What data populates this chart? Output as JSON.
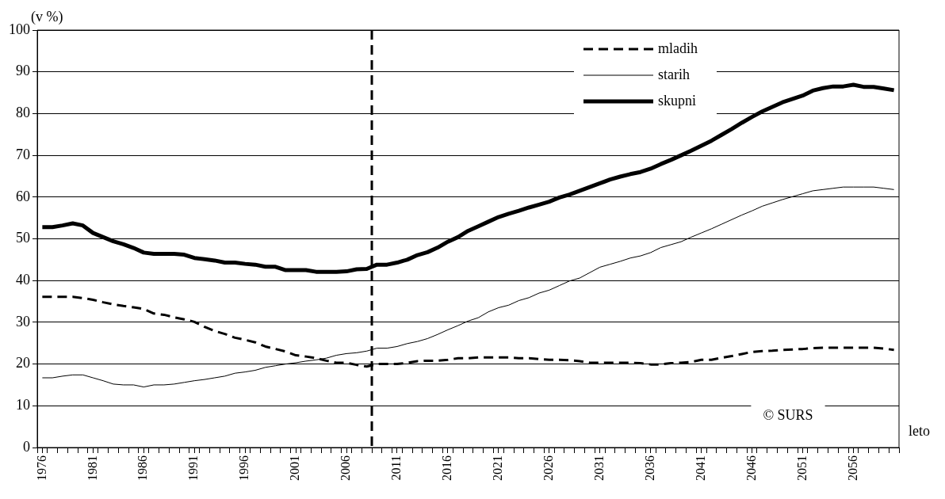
{
  "chart_data": {
    "type": "line",
    "xlabel": "leto",
    "ylabel": "(v %)",
    "x": [
      1976,
      1977,
      1978,
      1979,
      1980,
      1981,
      1982,
      1983,
      1984,
      1985,
      1986,
      1987,
      1988,
      1989,
      1990,
      1991,
      1992,
      1993,
      1994,
      1995,
      1996,
      1997,
      1998,
      1999,
      2000,
      2001,
      2002,
      2003,
      2004,
      2005,
      2006,
      2007,
      2008,
      2009,
      2010,
      2011,
      2012,
      2013,
      2014,
      2015,
      2016,
      2017,
      2018,
      2019,
      2020,
      2021,
      2022,
      2023,
      2024,
      2025,
      2026,
      2027,
      2028,
      2029,
      2030,
      2031,
      2032,
      2033,
      2034,
      2035,
      2036,
      2037,
      2038,
      2039,
      2040,
      2041,
      2042,
      2043,
      2044,
      2045,
      2046,
      2047,
      2048,
      2049,
      2050,
      2051,
      2052,
      2053,
      2054,
      2055,
      2056,
      2057,
      2058,
      2059,
      2060
    ],
    "series": [
      {
        "name": "mladih",
        "color": "#000000",
        "line_style": "dashed",
        "values": [
          36.1,
          36.1,
          36.1,
          36.1,
          35.8,
          35.4,
          34.8,
          34.3,
          33.9,
          33.6,
          33.2,
          32.1,
          31.8,
          31.2,
          30.7,
          30.1,
          28.9,
          27.9,
          27.2,
          26.3,
          25.8,
          25.2,
          24.2,
          23.6,
          23.0,
          22.1,
          21.8,
          21.4,
          20.8,
          20.3,
          20.3,
          19.8,
          19.4,
          20.0,
          20.0,
          20.0,
          20.3,
          20.7,
          20.8,
          20.8,
          21.0,
          21.4,
          21.4,
          21.6,
          21.6,
          21.6,
          21.6,
          21.4,
          21.4,
          21.2,
          21.0,
          21.0,
          20.9,
          20.7,
          20.3,
          20.3,
          20.3,
          20.3,
          20.3,
          20.2,
          19.9,
          19.9,
          20.2,
          20.3,
          20.5,
          21.0,
          21.0,
          21.5,
          21.9,
          22.4,
          22.9,
          23.1,
          23.2,
          23.4,
          23.5,
          23.6,
          23.8,
          23.9,
          23.9,
          23.9,
          23.9,
          23.9,
          23.9,
          23.7,
          23.4
        ]
      },
      {
        "name": "starih",
        "color": "#000000",
        "line_style": "solid",
        "values": [
          16.7,
          16.7,
          17.1,
          17.4,
          17.4,
          16.7,
          16.0,
          15.2,
          15.0,
          15.0,
          14.5,
          15.0,
          15.0,
          15.2,
          15.6,
          16.0,
          16.3,
          16.7,
          17.1,
          17.8,
          18.1,
          18.5,
          19.2,
          19.6,
          20.0,
          20.3,
          20.7,
          21.0,
          21.4,
          22.1,
          22.5,
          22.7,
          23.1,
          23.8,
          23.8,
          24.2,
          24.9,
          25.4,
          26.1,
          27.1,
          28.2,
          29.2,
          30.3,
          31.1,
          32.5,
          33.5,
          34.1,
          35.2,
          35.9,
          37.0,
          37.7,
          38.8,
          39.9,
          40.6,
          41.9,
          43.2,
          43.9,
          44.6,
          45.4,
          45.9,
          46.7,
          47.9,
          48.6,
          49.3,
          50.4,
          51.4,
          52.4,
          53.5,
          54.6,
          55.7,
          56.7,
          57.8,
          58.6,
          59.4,
          60.1,
          60.8,
          61.5,
          61.8,
          62.1,
          62.4,
          62.4,
          62.4,
          62.4,
          62.1,
          61.8
        ]
      },
      {
        "name": "skupni",
        "color": "#000000",
        "line_style": "solid",
        "values": [
          52.8,
          52.8,
          53.2,
          53.7,
          53.2,
          51.4,
          50.4,
          49.4,
          48.7,
          47.8,
          46.7,
          46.4,
          46.4,
          46.4,
          46.2,
          45.4,
          45.1,
          44.8,
          44.3,
          44.3,
          44.0,
          43.8,
          43.3,
          43.3,
          42.5,
          42.5,
          42.5,
          42.1,
          42.1,
          42.1,
          42.2,
          42.7,
          42.8,
          43.8,
          43.8,
          44.3,
          45.0,
          46.1,
          46.8,
          47.9,
          49.3,
          50.4,
          51.9,
          53.0,
          54.1,
          55.2,
          56.0,
          56.7,
          57.5,
          58.2,
          58.9,
          59.9,
          60.6,
          61.5,
          62.4,
          63.3,
          64.2,
          64.9,
          65.5,
          66.0,
          66.8,
          67.9,
          68.9,
          70.0,
          71.1,
          72.3,
          73.5,
          74.9,
          76.3,
          77.8,
          79.2,
          80.5,
          81.6,
          82.7,
          83.5,
          84.3,
          85.5,
          86.1,
          86.5,
          86.5,
          86.9,
          86.4,
          86.4,
          86.0,
          85.6
        ]
      }
    ],
    "xlim": [
      1975.5,
      2060.5
    ],
    "xticks": [
      1976,
      1981,
      1986,
      1991,
      1996,
      2001,
      2006,
      2011,
      2016,
      2021,
      2026,
      2031,
      2036,
      2041,
      2046,
      2051,
      2056,
      {
        "value": 1975.5,
        "label": null
      },
      {
        "value": 1976.5,
        "label": null
      },
      {
        "value": 1977.5,
        "label": null
      },
      {
        "value": 1978.5,
        "label": null
      },
      {
        "value": 1979.5,
        "label": null
      },
      {
        "value": 1980.5,
        "label": null
      },
      {
        "value": 1981.5,
        "label": null
      },
      {
        "value": 1982.5,
        "label": null
      },
      {
        "value": 1983.5,
        "label": null
      },
      {
        "value": 1984.5,
        "label": null
      },
      {
        "value": 1985.5,
        "label": null
      },
      {
        "value": 1986.5,
        "label": null
      },
      {
        "value": 1987.5,
        "label": null
      },
      {
        "value": 1988.5,
        "label": null
      },
      {
        "value": 1989.5,
        "label": null
      },
      {
        "value": 1990.5,
        "label": null
      },
      {
        "value": 1991.5,
        "label": null
      },
      {
        "value": 1992.5,
        "label": null
      },
      {
        "value": 1993.5,
        "label": null
      },
      {
        "value": 1994.5,
        "label": null
      },
      {
        "value": 1995.5,
        "label": null
      },
      {
        "value": 1996.5,
        "label": null
      },
      {
        "value": 1997.5,
        "label": null
      },
      {
        "value": 1998.5,
        "label": null
      },
      {
        "value": 1999.5,
        "label": null
      },
      {
        "value": 2000.5,
        "label": null
      },
      {
        "value": 2001.5,
        "label": null
      },
      {
        "value": 2002.5,
        "label": null
      },
      {
        "value": 2003.5,
        "label": null
      },
      {
        "value": 2004.5,
        "label": null
      },
      {
        "value": 2005.5,
        "label": null
      },
      {
        "value": 2006.5,
        "label": null
      },
      {
        "value": 2007.5,
        "label": null
      },
      {
        "value": 2008.5,
        "label": null
      },
      {
        "value": 2009.5,
        "label": null
      },
      {
        "value": 2010.5,
        "label": null
      },
      {
        "value": 2011.5,
        "label": null
      },
      {
        "value": 2012.5,
        "label": null
      },
      {
        "value": 2013.5,
        "label": null
      },
      {
        "value": 2014.5,
        "label": null
      },
      {
        "value": 2015.5,
        "label": null
      },
      {
        "value": 2016.5,
        "label": null
      },
      {
        "value": 2017.5,
        "label": null
      },
      {
        "value": 2018.5,
        "label": null
      },
      {
        "value": 2019.5,
        "label": null
      },
      {
        "value": 2020.5,
        "label": null
      },
      {
        "value": 2021.5,
        "label": null
      },
      {
        "value": 2022.5,
        "label": null
      },
      {
        "value": 2023.5,
        "label": null
      },
      {
        "value": 2024.5,
        "label": null
      },
      {
        "value": 2025.5,
        "label": null
      },
      {
        "value": 2026.5,
        "label": null
      },
      {
        "value": 2027.5,
        "label": null
      },
      {
        "value": 2028.5,
        "label": null
      },
      {
        "value": 2029.5,
        "label": null
      },
      {
        "value": 2030.5,
        "label": null
      },
      {
        "value": 2031.5,
        "label": null
      },
      {
        "value": 2032.5,
        "label": null
      },
      {
        "value": 2033.5,
        "label": null
      },
      {
        "value": 2034.5,
        "label": null
      },
      {
        "value": 2035.5,
        "label": null
      },
      {
        "value": 2036.5,
        "label": null
      },
      {
        "value": 2037.5,
        "label": null
      },
      {
        "value": 2038.5,
        "label": null
      },
      {
        "value": 2039.5,
        "label": null
      },
      {
        "value": 2040.5,
        "label": null
      },
      {
        "value": 2041.5,
        "label": null
      },
      {
        "value": 2042.5,
        "label": null
      },
      {
        "value": 2043.5,
        "label": null
      },
      {
        "value": 2044.5,
        "label": null
      },
      {
        "value": 2045.5,
        "label": null
      },
      {
        "value": 2046.5,
        "label": null
      },
      {
        "value": 2047.5,
        "label": null
      },
      {
        "value": 2048.5,
        "label": null
      },
      {
        "value": 2049.5,
        "label": null
      },
      {
        "value": 2050.5,
        "label": null
      },
      {
        "value": 2051.5,
        "label": null
      },
      {
        "value": 2052.5,
        "label": null
      },
      {
        "value": 2053.5,
        "label": null
      },
      {
        "value": 2054.5,
        "label": null
      },
      {
        "value": 2055.5,
        "label": null
      },
      {
        "value": 2056.5,
        "label": null
      },
      {
        "value": 2057.5,
        "label": null
      },
      {
        "value": 2058.5,
        "label": null
      },
      {
        "value": 2059.5,
        "label": null
      },
      {
        "value": 2060.5,
        "label": null
      }
    ],
    "ylim": [
      0,
      100
    ],
    "yticks": [
      0,
      10,
      20,
      30,
      40,
      50,
      60,
      70,
      80,
      90,
      100
    ],
    "grid": "y",
    "legend": "top right",
    "ref_lines": [
      {
        "axis": "x",
        "value": 2008.5,
        "color": "#000000",
        "line_style": "dashed"
      }
    ],
    "annotations": [
      "© SURS"
    ]
  }
}
